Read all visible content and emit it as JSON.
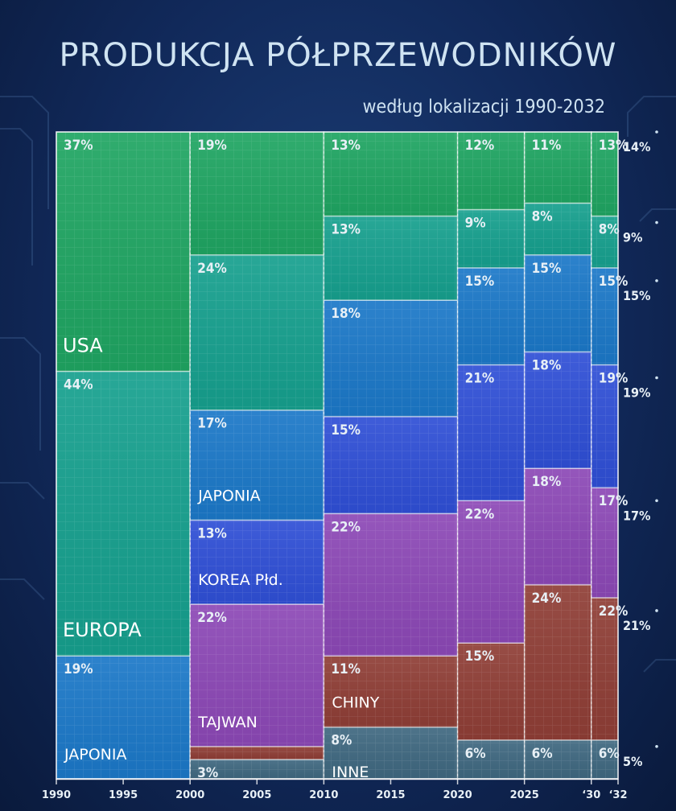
{
  "chart_data": {
    "type": "marimekko",
    "title": "PRODUKCJA PÓŁPRZEWODNIKÓW",
    "subtitle": "według lokalizacji 1990-2032",
    "x_ticks": [
      "1990",
      "1995",
      "2000",
      "2005",
      "2010",
      "2015",
      "2020",
      "2025",
      "‘30",
      "‘32"
    ],
    "x_tick_values": [
      1990,
      1995,
      2000,
      2005,
      2010,
      2015,
      2020,
      2025,
      2030,
      2032
    ],
    "xlim": [
      1990,
      2032
    ],
    "colors": {
      "USA": "#1fa562",
      "EUROPA": "#16a08e",
      "JAPONIA": "#1b78c8",
      "KOREA Płd.": "#2f4fd6",
      "TAJWAN": "#8c48b6",
      "CHINY": "#8f3e36",
      "INNE": "#3f6880"
    },
    "periods": [
      {
        "x0": 1990,
        "x1": 2000,
        "segments": [
          {
            "name": "JAPONIA",
            "value": 19,
            "label": "19%",
            "region": "JAPONIA"
          },
          {
            "name": "EUROPA",
            "value": 44,
            "label": "44%",
            "region": "EUROPA"
          },
          {
            "name": "USA",
            "value": 37,
            "label": "37%",
            "region": "USA"
          }
        ]
      },
      {
        "x0": 2000,
        "x1": 2010,
        "segments": [
          {
            "name": "INNE",
            "value": 3,
            "label": "3%"
          },
          {
            "name": "CHINY",
            "value": 2,
            "label": ""
          },
          {
            "name": "TAJWAN",
            "value": 22,
            "label": "22%",
            "region": "TAJWAN"
          },
          {
            "name": "KOREA Płd.",
            "value": 13,
            "label": "13%",
            "region": "KOREA Płd."
          },
          {
            "name": "JAPONIA",
            "value": 17,
            "label": "17%",
            "region": "JAPONIA"
          },
          {
            "name": "EUROPA",
            "value": 24,
            "label": "24%"
          },
          {
            "name": "USA",
            "value": 19,
            "label": "19%"
          }
        ]
      },
      {
        "x0": 2010,
        "x1": 2020,
        "segments": [
          {
            "name": "INNE",
            "value": 8,
            "label": "8%",
            "region": "INNE"
          },
          {
            "name": "CHINY",
            "value": 11,
            "label": "11%",
            "region": "CHINY"
          },
          {
            "name": "TAJWAN",
            "value": 22,
            "label": "22%"
          },
          {
            "name": "KOREA Płd.",
            "value": 15,
            "label": "15%"
          },
          {
            "name": "JAPONIA",
            "value": 18,
            "label": "18%"
          },
          {
            "name": "EUROPA",
            "value": 13,
            "label": "13%"
          },
          {
            "name": "USA",
            "value": 13,
            "label": "13%"
          }
        ]
      },
      {
        "x0": 2020,
        "x1": 2025,
        "segments": [
          {
            "name": "INNE",
            "value": 6,
            "label": "6%"
          },
          {
            "name": "CHINY",
            "value": 15,
            "label": "15%"
          },
          {
            "name": "TAJWAN",
            "value": 22,
            "label": "22%"
          },
          {
            "name": "KOREA Płd.",
            "value": 21,
            "label": "21%"
          },
          {
            "name": "JAPONIA",
            "value": 15,
            "label": "15%"
          },
          {
            "name": "EUROPA",
            "value": 9,
            "label": "9%"
          },
          {
            "name": "USA",
            "value": 12,
            "label": "12%"
          }
        ]
      },
      {
        "x0": 2025,
        "x1": 2030,
        "segments": [
          {
            "name": "INNE",
            "value": 6,
            "label": "6%"
          },
          {
            "name": "CHINY",
            "value": 24,
            "label": "24%"
          },
          {
            "name": "TAJWAN",
            "value": 18,
            "label": "18%"
          },
          {
            "name": "KOREA Płd.",
            "value": 18,
            "label": "18%"
          },
          {
            "name": "JAPONIA",
            "value": 15,
            "label": "15%"
          },
          {
            "name": "EUROPA",
            "value": 8,
            "label": "8%"
          },
          {
            "name": "USA",
            "value": 11,
            "label": "11%"
          }
        ]
      },
      {
        "x0": 2030,
        "x1": 2032,
        "segments": [
          {
            "name": "INNE",
            "value": 6,
            "label": "6%"
          },
          {
            "name": "CHINY",
            "value": 22,
            "label": "22%"
          },
          {
            "name": "TAJWAN",
            "value": 17,
            "label": "17%"
          },
          {
            "name": "KOREA Płd.",
            "value": 19,
            "label": "19%"
          },
          {
            "name": "JAPONIA",
            "value": 15,
            "label": "15%"
          },
          {
            "name": "EUROPA",
            "value": 8,
            "label": "8%"
          },
          {
            "name": "USA",
            "value": 13,
            "label": "13%"
          }
        ]
      }
    ],
    "projection_2032": [
      {
        "name": "INNE",
        "value": 5,
        "label": "5%"
      },
      {
        "name": "CHINY",
        "value": 21,
        "label": "21%"
      },
      {
        "name": "TAJWAN",
        "value": 17,
        "label": "17%"
      },
      {
        "name": "KOREA Płd.",
        "value": 19,
        "label": "19%"
      },
      {
        "name": "JAPONIA",
        "value": 15,
        "label": "15%"
      },
      {
        "name": "EUROPA",
        "value": 9,
        "label": "9%"
      },
      {
        "name": "USA",
        "value": 14,
        "label": "14%"
      }
    ]
  }
}
